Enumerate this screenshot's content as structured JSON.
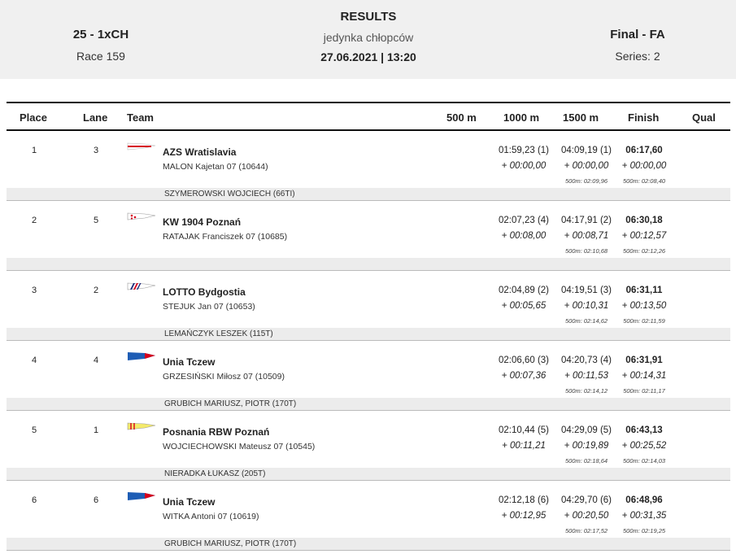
{
  "header": {
    "event_code": "25 - 1xCH",
    "race_number": "Race 159",
    "title": "RESULTS",
    "subtitle": "jedynka chłopców",
    "datetime": "27.06.2021 | 13:20",
    "final": "Final - FA",
    "series": "Series: 2"
  },
  "columns": {
    "place": "Place",
    "lane": "Lane",
    "team": "Team",
    "m500": "500 m",
    "m1000": "1000 m",
    "m1500": "1500 m",
    "finish": "Finish",
    "qual": "Qual"
  },
  "rows": [
    {
      "place": "1",
      "lane": "3",
      "team": "AZS Wratislavia",
      "rower": "MALON  Kajetan 07 (10644)",
      "t1000": "01:59,23 (1)",
      "d1000": "+ 00:00,00",
      "t1500": "04:09,19 (1)",
      "d1500": "+ 00:00,00",
      "s1500": "500m: 02:09,96",
      "finish": "06:17,60",
      "dfinish": "+ 00:00,00",
      "sfinish": "500m: 02:08,40",
      "coach": "SZYMEROWSKI WOJCIECH (66TI)",
      "flag_icon": "azs-blade-icon",
      "flag_colors": [
        "#ffffff",
        "#d6001c"
      ]
    },
    {
      "place": "2",
      "lane": "5",
      "team": "KW 1904 Poznań",
      "rower": "RATAJAK  Franciszek 07 (10685)",
      "t1000": "02:07,23 (4)",
      "d1000": "+ 00:08,00",
      "t1500": "04:17,91 (2)",
      "d1500": "+ 00:08,71",
      "s1500": "500m: 02:10,68",
      "finish": "06:30,18",
      "dfinish": "+ 00:12,57",
      "sfinish": "500m: 02:12,26",
      "coach": "",
      "flag_icon": "kw-blade-icon",
      "flag_colors": [
        "#ffffff",
        "#d6001c"
      ]
    },
    {
      "place": "3",
      "lane": "2",
      "team": "LOTTO Bydgostia",
      "rower": "STEJUK  Jan 07 (10653)",
      "t1000": "02:04,89 (2)",
      "d1000": "+ 00:05,65",
      "t1500": "04:19,51 (3)",
      "d1500": "+ 00:10,31",
      "s1500": "500m: 02:14,62",
      "finish": "06:31,11",
      "dfinish": "+ 00:13,50",
      "sfinish": "500m: 02:11,59",
      "coach": "LEMAŃCZYK LESZEK (115T)",
      "flag_icon": "lotto-blade-icon",
      "flag_colors": [
        "#ffffff",
        "#1a2a7a",
        "#d6001c"
      ]
    },
    {
      "place": "4",
      "lane": "4",
      "team": "Unia Tczew",
      "rower": "GRZESIŃSKI  Miłosz 07 (10509)",
      "t1000": "02:06,60 (3)",
      "d1000": "+ 00:07,36",
      "t1500": "04:20,73 (4)",
      "d1500": "+ 00:11,53",
      "s1500": "500m: 02:14,12",
      "finish": "06:31,91",
      "dfinish": "+ 00:14,31",
      "sfinish": "500m: 02:11,17",
      "coach": "GRUBICH MARIUSZ, PIOTR (170T)",
      "flag_icon": "unia-blade-icon",
      "flag_colors": [
        "#1e5db5",
        "#d6001c"
      ]
    },
    {
      "place": "5",
      "lane": "1",
      "team": "Posnania RBW Poznań",
      "rower": "WOJCIECHOWSKI  Mateusz 07 (10545)",
      "t1000": "02:10,44 (5)",
      "d1000": "+ 00:11,21",
      "t1500": "04:29,09 (5)",
      "d1500": "+ 00:19,89",
      "s1500": "500m: 02:18,64",
      "finish": "06:43,13",
      "dfinish": "+ 00:25,52",
      "sfinish": "500m: 02:14,03",
      "coach": "NIERADKA ŁUKASZ (205T)",
      "flag_icon": "posnania-blade-icon",
      "flag_colors": [
        "#f4ea6a",
        "#d6001c"
      ]
    },
    {
      "place": "6",
      "lane": "6",
      "team": "Unia Tczew",
      "rower": "WITKA  Antoni 07 (10619)",
      "t1000": "02:12,18 (6)",
      "d1000": "+ 00:12,95",
      "t1500": "04:29,70 (6)",
      "d1500": "+ 00:20,50",
      "s1500": "500m: 02:17,52",
      "finish": "06:48,96",
      "dfinish": "+ 00:31,35",
      "sfinish": "500m: 02:19,25",
      "coach": "GRUBICH MARIUSZ, PIOTR (170T)",
      "flag_icon": "unia-blade-icon",
      "flag_colors": [
        "#1e5db5",
        "#d6001c"
      ]
    }
  ]
}
